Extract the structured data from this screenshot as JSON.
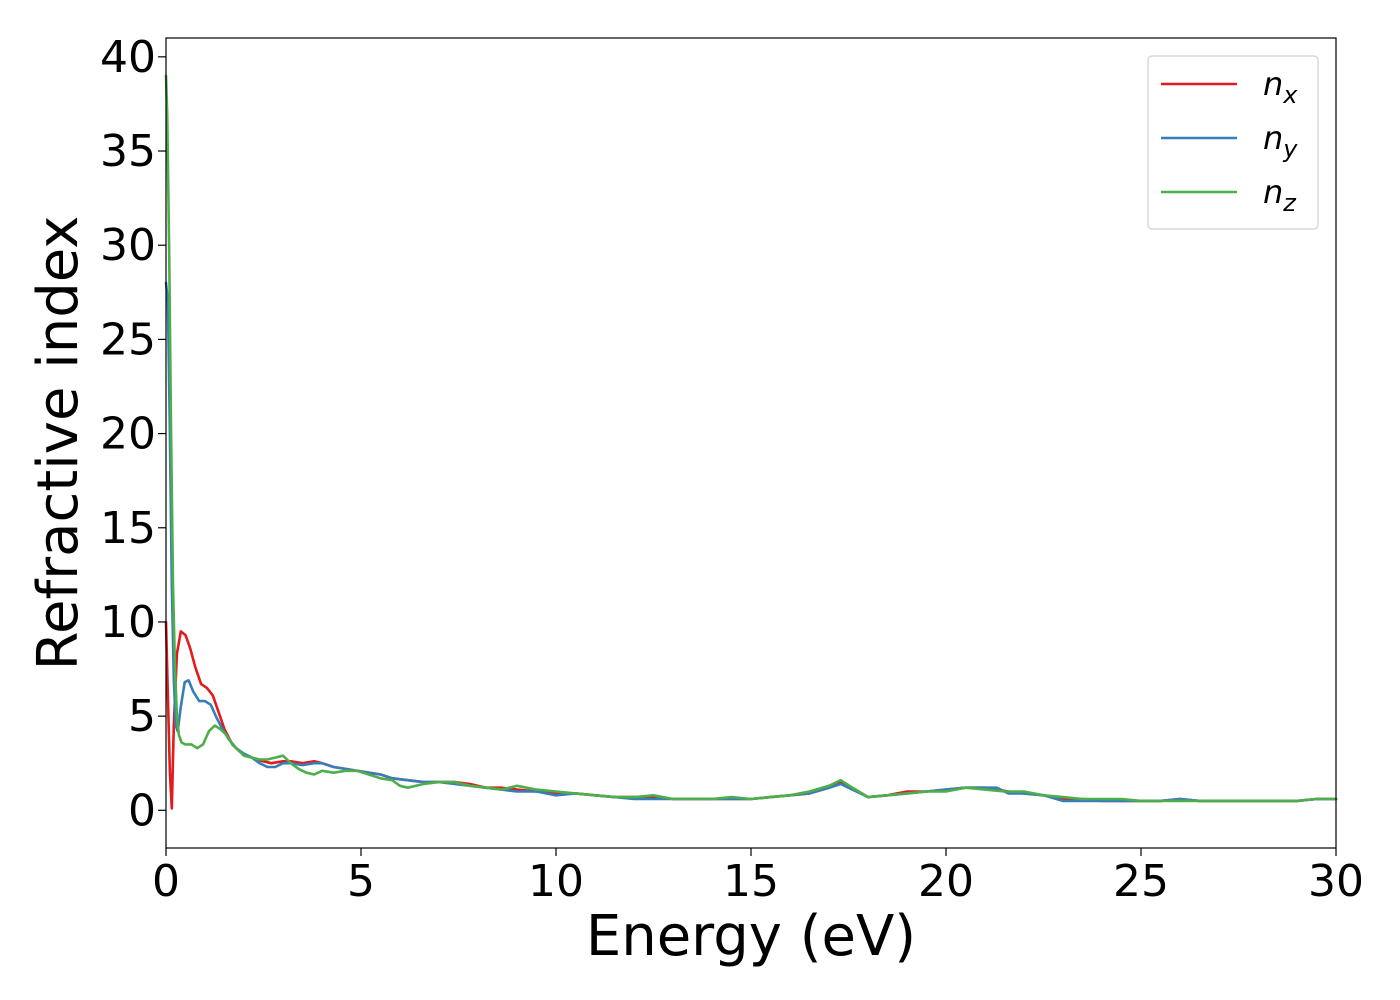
{
  "chart_data": {
    "type": "line",
    "title": "",
    "xlabel": "Energy (eV)",
    "ylabel": "Refractive index",
    "xlim": [
      0,
      30
    ],
    "ylim": [
      -2,
      41
    ],
    "xticks": [
      0,
      5,
      10,
      15,
      20,
      25,
      30
    ],
    "yticks": [
      0,
      5,
      10,
      15,
      20,
      25,
      30,
      35,
      40
    ],
    "grid": false,
    "legend_position": "top-right",
    "series": [
      {
        "name": "n",
        "subscript": "x",
        "color": "#e41a1c",
        "x": [
          0,
          0.05,
          0.1,
          0.15,
          0.2,
          0.28,
          0.38,
          0.5,
          0.62,
          0.75,
          0.9,
          1.05,
          1.2,
          1.35,
          1.5,
          1.7,
          1.9,
          2.1,
          2.3,
          2.5,
          2.7,
          3.0,
          3.2,
          3.5,
          3.8,
          4.0,
          4.3,
          4.6,
          4.9,
          5.2,
          5.5,
          5.8,
          6.2,
          6.6,
          7.0,
          7.4,
          7.8,
          8.2,
          8.6,
          9.0,
          9.5,
          10.0,
          10.5,
          11.0,
          11.5,
          12.0,
          12.5,
          13.0,
          13.5,
          14.0,
          14.5,
          15.0,
          15.5,
          16.0,
          16.5,
          17.0,
          17.3,
          17.6,
          18.0,
          18.5,
          19.0,
          19.5,
          20.0,
          20.5,
          21.0,
          21.3,
          21.6,
          22.0,
          22.5,
          23.0,
          23.5,
          24.0,
          24.5,
          25.0,
          25.5,
          26.0,
          26.5,
          27.0,
          27.5,
          28.0,
          28.5,
          29.0,
          29.5,
          30.0
        ],
        "y": [
          10.0,
          6.0,
          2.0,
          0.1,
          4.5,
          8.3,
          9.5,
          9.3,
          8.6,
          7.6,
          6.7,
          6.5,
          6.1,
          5.2,
          4.3,
          3.5,
          3.1,
          2.9,
          2.7,
          2.6,
          2.5,
          2.6,
          2.6,
          2.5,
          2.6,
          2.5,
          2.3,
          2.2,
          2.1,
          2.0,
          1.9,
          1.7,
          1.6,
          1.5,
          1.5,
          1.5,
          1.4,
          1.2,
          1.2,
          1.1,
          1.0,
          0.9,
          0.9,
          0.8,
          0.7,
          0.7,
          0.7,
          0.6,
          0.6,
          0.6,
          0.6,
          0.6,
          0.7,
          0.8,
          0.9,
          1.2,
          1.5,
          1.2,
          0.7,
          0.8,
          1.0,
          1.0,
          1.1,
          1.2,
          1.2,
          1.1,
          1.0,
          0.9,
          0.8,
          0.6,
          0.6,
          0.5,
          0.5,
          0.5,
          0.5,
          0.6,
          0.5,
          0.5,
          0.5,
          0.5,
          0.5,
          0.5,
          0.6,
          0.6
        ]
      },
      {
        "name": "n",
        "subscript": "y",
        "color": "#377eb8",
        "x": [
          0,
          0.05,
          0.1,
          0.15,
          0.2,
          0.25,
          0.3,
          0.38,
          0.48,
          0.58,
          0.7,
          0.85,
          1.0,
          1.15,
          1.3,
          1.45,
          1.6,
          1.8,
          2.0,
          2.2,
          2.4,
          2.6,
          2.8,
          3.0,
          3.2,
          3.5,
          3.8,
          4.0,
          4.3,
          4.6,
          4.9,
          5.2,
          5.5,
          5.8,
          6.2,
          6.6,
          7.0,
          7.4,
          7.8,
          8.2,
          8.6,
          9.0,
          9.5,
          10.0,
          10.5,
          11.0,
          11.5,
          12.0,
          12.5,
          13.0,
          13.5,
          14.0,
          14.5,
          15.0,
          15.5,
          16.0,
          16.5,
          17.0,
          17.3,
          17.6,
          18.0,
          18.5,
          19.0,
          19.5,
          20.0,
          20.5,
          21.0,
          21.3,
          21.6,
          22.0,
          22.5,
          23.0,
          23.5,
          24.0,
          24.5,
          25.0,
          25.5,
          26.0,
          26.5,
          27.0,
          27.5,
          28.0,
          28.5,
          29.0,
          29.5,
          30.0
        ],
        "y": [
          28.0,
          27.0,
          20.0,
          12.0,
          7.0,
          4.5,
          4.2,
          5.5,
          6.8,
          6.9,
          6.3,
          5.8,
          5.8,
          5.6,
          4.9,
          4.3,
          3.8,
          3.3,
          3.0,
          2.8,
          2.5,
          2.3,
          2.3,
          2.5,
          2.5,
          2.4,
          2.5,
          2.5,
          2.3,
          2.2,
          2.1,
          2.0,
          1.9,
          1.7,
          1.6,
          1.5,
          1.5,
          1.4,
          1.3,
          1.2,
          1.1,
          1.0,
          1.0,
          0.8,
          0.9,
          0.8,
          0.7,
          0.6,
          0.6,
          0.6,
          0.6,
          0.6,
          0.6,
          0.6,
          0.7,
          0.8,
          0.9,
          1.2,
          1.4,
          1.1,
          0.7,
          0.8,
          0.9,
          1.0,
          1.1,
          1.2,
          1.2,
          1.2,
          0.9,
          0.9,
          0.8,
          0.5,
          0.5,
          0.5,
          0.5,
          0.5,
          0.5,
          0.6,
          0.5,
          0.5,
          0.5,
          0.5,
          0.5,
          0.5,
          0.6,
          0.6
        ]
      },
      {
        "name": "n",
        "subscript": "z",
        "color": "#4daf4a",
        "x": [
          0,
          0.03,
          0.08,
          0.13,
          0.18,
          0.23,
          0.28,
          0.33,
          0.4,
          0.5,
          0.65,
          0.8,
          0.95,
          1.1,
          1.25,
          1.4,
          1.55,
          1.7,
          1.85,
          2.0,
          2.2,
          2.4,
          2.6,
          2.8,
          3.0,
          3.2,
          3.4,
          3.6,
          3.8,
          4.0,
          4.3,
          4.6,
          4.9,
          5.2,
          5.5,
          5.8,
          6.0,
          6.2,
          6.6,
          7.0,
          7.4,
          7.8,
          8.2,
          8.6,
          9.0,
          9.5,
          10.0,
          10.5,
          11.0,
          11.5,
          12.0,
          12.5,
          13.0,
          13.5,
          14.0,
          14.5,
          15.0,
          15.5,
          16.0,
          16.5,
          17.0,
          17.3,
          17.6,
          18.0,
          18.5,
          19.0,
          19.5,
          20.0,
          20.5,
          21.0,
          21.5,
          22.0,
          22.5,
          23.0,
          23.5,
          24.0,
          24.5,
          25.0,
          25.5,
          26.0,
          26.5,
          27.0,
          27.5,
          28.0,
          28.5,
          29.0,
          29.5,
          30.0
        ],
        "y": [
          39.0,
          37.0,
          30.0,
          20.0,
          12.0,
          7.5,
          5.0,
          4.0,
          3.6,
          3.5,
          3.5,
          3.3,
          3.5,
          4.2,
          4.5,
          4.3,
          4.0,
          3.5,
          3.2,
          2.9,
          2.8,
          2.7,
          2.7,
          2.8,
          2.9,
          2.5,
          2.2,
          2.0,
          1.9,
          2.1,
          2.0,
          2.1,
          2.1,
          1.9,
          1.7,
          1.6,
          1.3,
          1.2,
          1.4,
          1.5,
          1.5,
          1.3,
          1.2,
          1.1,
          1.3,
          1.1,
          1.0,
          0.9,
          0.8,
          0.7,
          0.7,
          0.8,
          0.6,
          0.6,
          0.6,
          0.7,
          0.6,
          0.7,
          0.8,
          1.0,
          1.3,
          1.6,
          1.2,
          0.7,
          0.8,
          0.9,
          1.0,
          1.0,
          1.2,
          1.1,
          1.0,
          1.0,
          0.8,
          0.7,
          0.6,
          0.6,
          0.6,
          0.5,
          0.5,
          0.5,
          0.5,
          0.5,
          0.5,
          0.5,
          0.5,
          0.5,
          0.6,
          0.6
        ]
      }
    ]
  }
}
